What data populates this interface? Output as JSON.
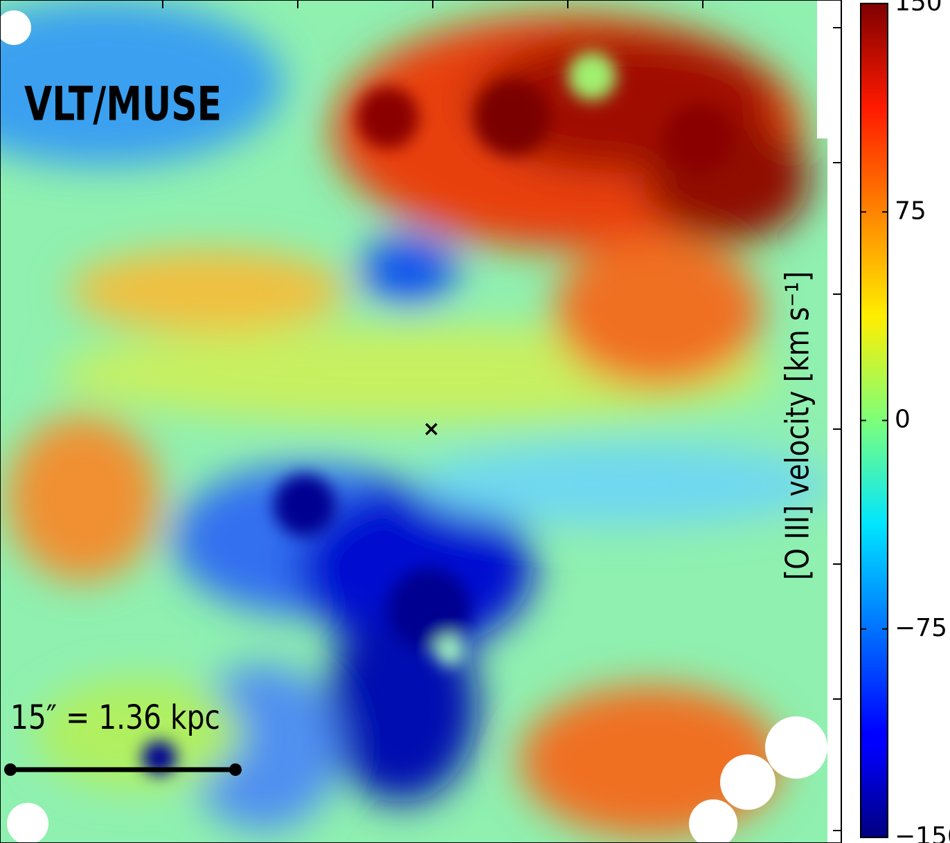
{
  "chart_data": {
    "type": "image",
    "annotation": "VLT/MUSE",
    "scale_bar": "15″ = 1.36 kpc",
    "colorbar": {
      "label": "[O III] velocity [km s⁻¹]",
      "colormap": "jet",
      "clim": [
        -150,
        150
      ],
      "ticks": [
        150,
        75,
        0,
        {
          "value": -75,
          "label": "−75"
        },
        {
          "value": -150,
          "label": "−150"
        }
      ]
    }
  }
}
